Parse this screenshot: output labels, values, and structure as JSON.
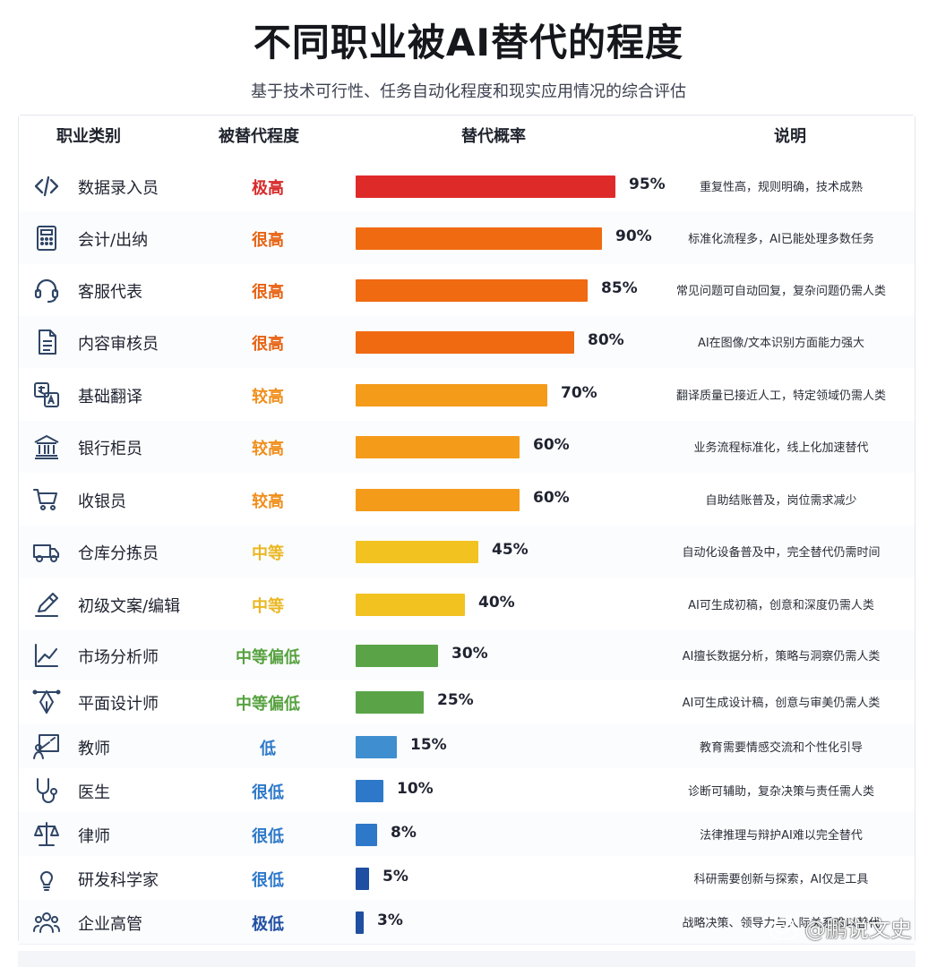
{
  "title": "不同职业被AI替代的程度",
  "subtitle": "基于技术可行性、任务自动化程度和现实应用情况的综合评估",
  "headers": {
    "category": "职业类别",
    "level": "被替代程度",
    "probability": "替代概率",
    "description": "说明"
  },
  "watermark": {
    "text": "@鹏说文史"
  },
  "colors": {
    "bar_red": "#df2a2a",
    "bar_deep_orange": "#f06a12",
    "bar_orange": "#f59b1a",
    "bar_yellow": "#f2c221",
    "bar_green": "#5aa447",
    "bar_light_blue": "#3f8ecf",
    "bar_blue": "#2d78c9",
    "bar_navy": "#1f4fa2",
    "text_red": "#d72a2a",
    "text_deep_orange": "#e76313",
    "text_orange": "#f08f1d",
    "text_yellow": "#eab723",
    "text_green": "#56a13f",
    "text_blue": "#2d78c9",
    "text_navy": "#1f4fa2"
  },
  "chart_data": {
    "type": "bar",
    "title": "不同职业被AI替代的程度",
    "subtitle": "基于技术可行性、任务自动化程度和现实应用情况的综合评估",
    "categories": [
      "数据录入员",
      "会计/出纳",
      "客服代表",
      "内容审核员",
      "基础翻译",
      "银行柜员",
      "收银员",
      "仓库分拣员",
      "初级文案/编辑",
      "市场分析师",
      "平面设计师",
      "教师",
      "医生",
      "律师",
      "研发科学家",
      "企业高管"
    ],
    "values": [
      95,
      90,
      85,
      80,
      70,
      60,
      60,
      45,
      40,
      30,
      25,
      15,
      10,
      8,
      5,
      3
    ],
    "ylim": [
      0,
      100
    ],
    "value_labels": [
      "95%",
      "90%",
      "85%",
      "80%",
      "70%",
      "60%",
      "60%",
      "45%",
      "40%",
      "30%",
      "25%",
      "15%",
      "10%",
      "8%",
      "5%",
      "3%"
    ],
    "levels": [
      "极高",
      "很高",
      "很高",
      "很高",
      "较高",
      "较高",
      "较高",
      "中等",
      "中等",
      "中等偏低",
      "中等偏低",
      "低",
      "很低",
      "很低",
      "很低",
      "极低"
    ],
    "descriptions": [
      "重复性高，规则明确，技术成熟",
      "标准化流程多，AI已能处理多数任务",
      "常见问题可自动回复，复杂问题仍需人类",
      "AI在图像/文本识别方面能力强大",
      "翻译质量已接近人工，特定领域仍需人类",
      "业务流程标准化，线上化加速替代",
      "自助结账普及，岗位需求减少",
      "自动化设备普及中，完全替代仍需时间",
      "AI可生成初稿，创意和深度仍需人类",
      "AI擅长数据分析，策略与洞察仍需人类",
      "AI可生成设计稿，创意与审美仍需人类",
      "教育需要情感交流和个性化引导",
      "诊断可辅助，复杂决策与责任需人类",
      "法律推理与辩护AI难以完全替代",
      "科研需要创新与探索，AI仅是工具",
      "战略决策、领导力与人际关系难以替代"
    ],
    "icons": [
      "code-icon",
      "calculator-icon",
      "headset-icon",
      "document-icon",
      "translate-icon",
      "bank-icon",
      "shopping-cart-icon",
      "truck-icon",
      "pen-icon",
      "trend-chart-icon",
      "design-pen-icon",
      "teacher-board-icon",
      "stethoscope-icon",
      "balance-scale-icon",
      "lightbulb-icon",
      "team-icon"
    ],
    "bar_colors": [
      "#df2a2a",
      "#f06a12",
      "#f06a12",
      "#f06a12",
      "#f59b1a",
      "#f59b1a",
      "#f59b1a",
      "#f2c221",
      "#f2c221",
      "#5aa447",
      "#5aa447",
      "#3f8ecf",
      "#2d78c9",
      "#2d78c9",
      "#1f4fa2",
      "#1f4fa2"
    ],
    "level_colors": [
      "#d72a2a",
      "#e76313",
      "#e76313",
      "#e76313",
      "#f08f1d",
      "#f08f1d",
      "#f08f1d",
      "#eab723",
      "#eab723",
      "#56a13f",
      "#56a13f",
      "#2d78c9",
      "#2d78c9",
      "#2d78c9",
      "#2d78c9",
      "#1f4fa2"
    ],
    "grid": false,
    "legend": "none"
  }
}
